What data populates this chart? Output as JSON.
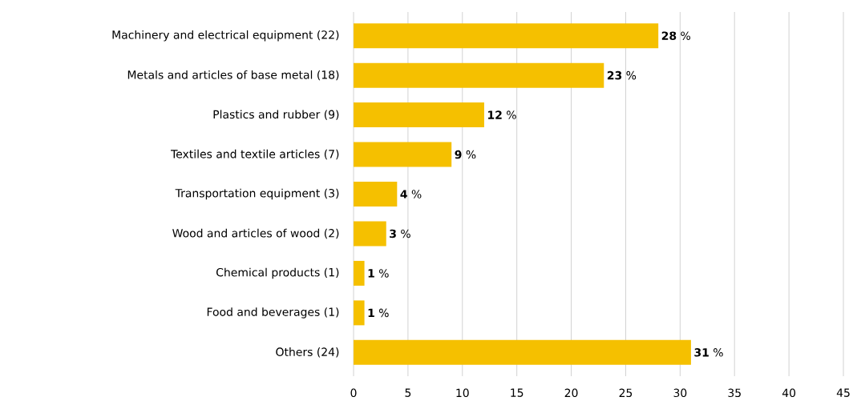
{
  "chart_data": {
    "type": "bar",
    "orientation": "horizontal",
    "categories": [
      "Machinery and electrical equipment  (22)",
      "Metals and articles of base metal  (18)",
      "Plastics and rubber  (9)",
      "Textiles and textile articles  (7)",
      "Transportation equipment  (3)",
      "Wood and articles of wood  (2)",
      "Chemical products  (1)",
      "Food and beverages  (1)",
      "Others  (24)"
    ],
    "values": [
      28,
      23,
      12,
      9,
      4,
      3,
      1,
      1,
      31
    ],
    "value_labels": [
      "**28** %",
      "**23** %",
      "**12** %",
      "**9** %",
      "**4** %",
      "**3** %",
      "**1** %",
      "**1** %",
      "**31** %"
    ],
    "color": "#f5c000",
    "xlim": [
      0,
      45
    ],
    "xticks": [
      0,
      5,
      10,
      15,
      20,
      25,
      30,
      35,
      40,
      45
    ],
    "grid": "x"
  }
}
